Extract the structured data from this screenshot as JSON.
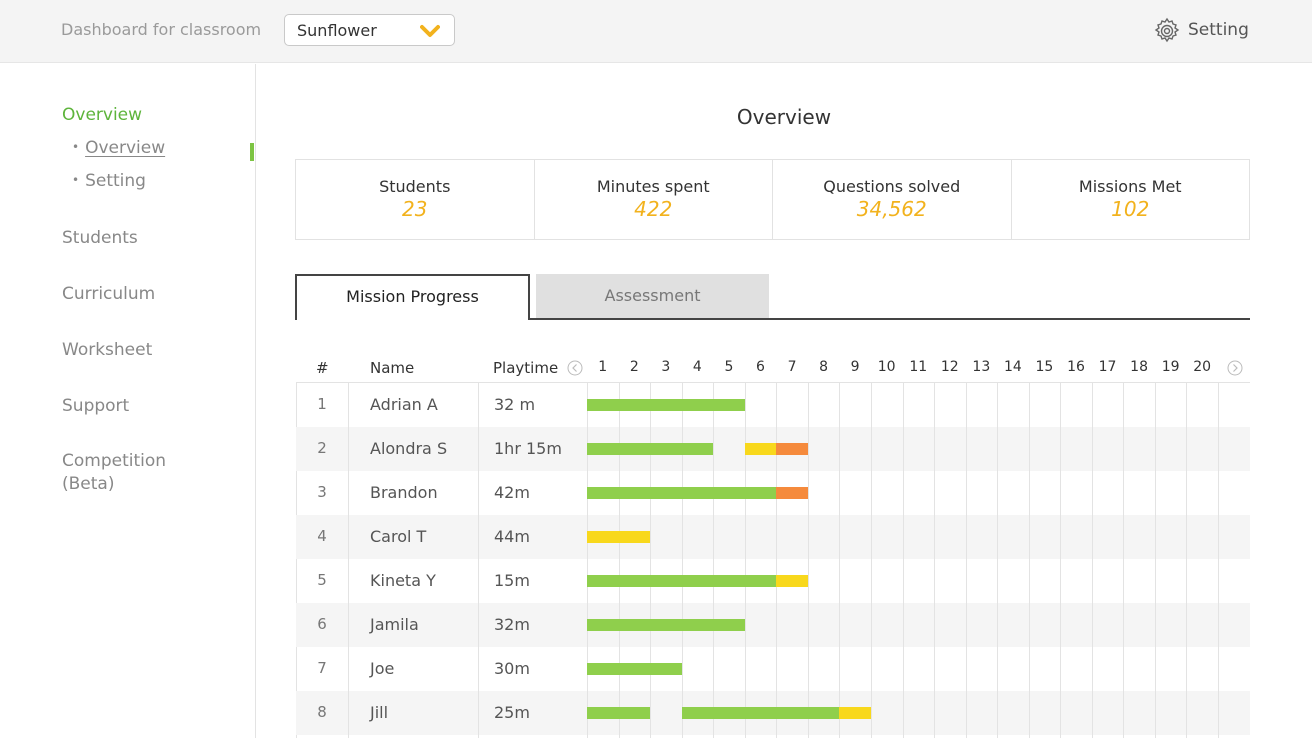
{
  "header": {
    "dashboard_label": "Dashboard for classroom",
    "classroom_value": "Sunflower",
    "settings_label": "Setting",
    "chevron_icon": "chevron-down-icon",
    "gear_icon": "gear-icon"
  },
  "sidebar": {
    "overview": "Overview",
    "sub": {
      "overview": "Overview",
      "setting": "Setting"
    },
    "students": "Students",
    "curriculum": "Curriculum",
    "worksheet": "Worksheet",
    "support": "Support",
    "competition_1": "Competition",
    "competition_2": "(Beta)"
  },
  "main": {
    "title": "Overview",
    "stats": [
      {
        "label": "Students",
        "value": "23"
      },
      {
        "label": "Minutes spent",
        "value": "422"
      },
      {
        "label": "Questions solved",
        "value": "34,562"
      },
      {
        "label": "Missions Met",
        "value": "102"
      }
    ],
    "tabs": {
      "mission": "Mission Progress",
      "assessment": "Assessment"
    }
  },
  "table": {
    "headers": {
      "num": "#",
      "name": "Name",
      "playtime": "Playtime"
    },
    "missions": [
      "1",
      "2",
      "3",
      "4",
      "5",
      "6",
      "7",
      "8",
      "9",
      "10",
      "11",
      "12",
      "13",
      "14",
      "15",
      "16",
      "17",
      "18",
      "19",
      "20"
    ],
    "colors": {
      "done": "#8fcf4c",
      "progress": "#f8d81c",
      "stuck": "#f58a3c"
    },
    "rows": [
      {
        "num": "1",
        "name": "Adrian A",
        "playtime": "32 m",
        "segments": [
          {
            "from": 1,
            "to": 5,
            "status": "done"
          }
        ]
      },
      {
        "num": "2",
        "name": "Alondra S",
        "playtime": "1hr 15m",
        "segments": [
          {
            "from": 1,
            "to": 4,
            "status": "done"
          },
          {
            "from": 6,
            "to": 6,
            "status": "progress"
          },
          {
            "from": 7,
            "to": 7,
            "status": "stuck"
          }
        ]
      },
      {
        "num": "3",
        "name": "Brandon",
        "playtime": "42m",
        "segments": [
          {
            "from": 1,
            "to": 6,
            "status": "done"
          },
          {
            "from": 7,
            "to": 7,
            "status": "stuck"
          }
        ]
      },
      {
        "num": "4",
        "name": "Carol T",
        "playtime": "44m",
        "segments": [
          {
            "from": 1,
            "to": 2,
            "status": "progress"
          }
        ]
      },
      {
        "num": "5",
        "name": "Kineta Y",
        "playtime": "15m",
        "segments": [
          {
            "from": 1,
            "to": 6,
            "status": "done"
          },
          {
            "from": 7,
            "to": 7,
            "status": "progress"
          }
        ]
      },
      {
        "num": "6",
        "name": "Jamila",
        "playtime": "32m",
        "segments": [
          {
            "from": 1,
            "to": 5,
            "status": "done"
          }
        ]
      },
      {
        "num": "7",
        "name": "Joe",
        "playtime": "30m",
        "segments": [
          {
            "from": 1,
            "to": 3,
            "status": "done"
          }
        ]
      },
      {
        "num": "8",
        "name": "Jill",
        "playtime": "25m",
        "segments": [
          {
            "from": 1,
            "to": 2,
            "status": "done"
          },
          {
            "from": 4,
            "to": 8,
            "status": "done"
          },
          {
            "from": 9,
            "to": 9,
            "status": "progress"
          }
        ]
      }
    ]
  }
}
